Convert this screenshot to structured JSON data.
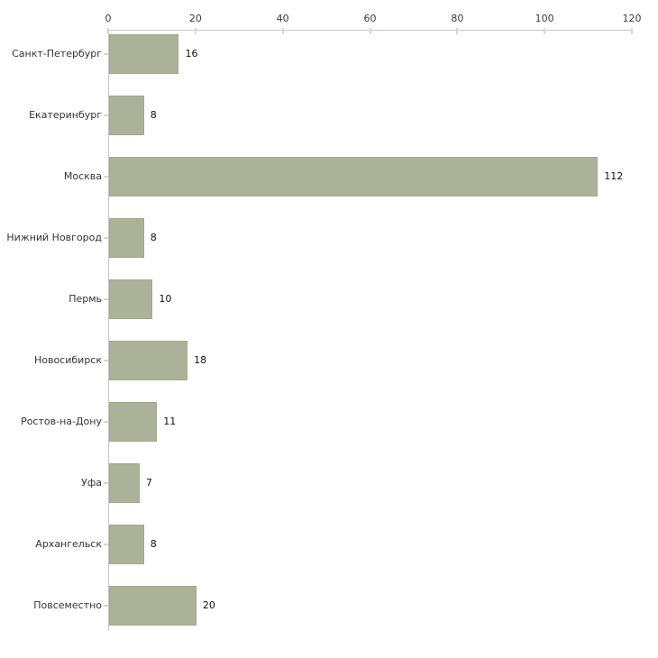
{
  "chart_data": {
    "type": "bar",
    "orientation": "horizontal",
    "title": "",
    "categories": [
      "Санкт-Петербург",
      "Екатеринбург",
      "Москва",
      "Нижний Новгород",
      "Пермь",
      "Новосибирск",
      "Ростов-на-Дону",
      "Уфа",
      "Архангельск",
      "Повсеместно"
    ],
    "values": [
      16,
      8,
      112,
      8,
      10,
      18,
      11,
      7,
      8,
      20
    ],
    "value_labels": [
      "16",
      "8",
      "112",
      "8",
      "10",
      "18",
      "11",
      "7",
      "8",
      "20"
    ],
    "xlim": [
      0,
      120
    ],
    "xticks": [
      0,
      20,
      40,
      60,
      80,
      100,
      120
    ],
    "x_axis_position": "top",
    "grid": false,
    "legend": null,
    "colors": {
      "bar_fill": "#abb299",
      "bar_border": "#a2aa87",
      "axis_line": "#c6c6c6",
      "tick_mark": "#d9dabc",
      "tick_label": "#3a3a3a",
      "category_label": "#333333",
      "value_label": "#111111",
      "background": "#ffffff"
    }
  }
}
